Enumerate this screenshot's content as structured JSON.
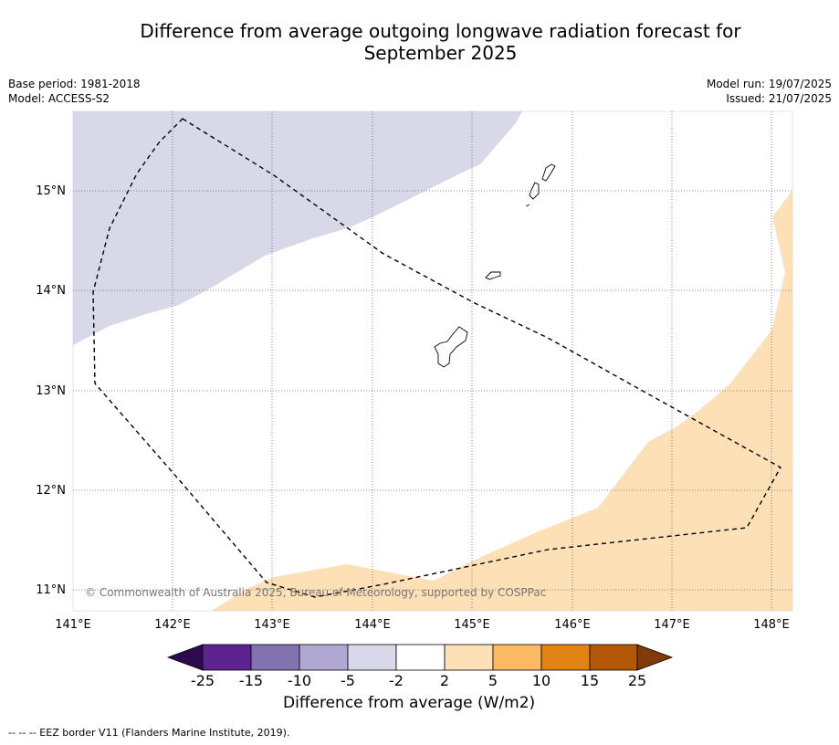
{
  "title_line1": "Difference from average outgoing longwave radiation forecast for",
  "title_line2": "September 2025",
  "meta": {
    "base_period": "Base period: 1981-2018",
    "model": "Model: ACCESS-S2",
    "model_run": "Model run: 19/07/2025",
    "issued": "Issued: 21/07/2025"
  },
  "map": {
    "lon_labels": [
      "141°E",
      "142°E",
      "143°E",
      "144°E",
      "145°E",
      "146°E",
      "147°E",
      "148°E"
    ],
    "lat_labels": [
      "15°N",
      "14°N",
      "13°N",
      "12°N",
      "11°N"
    ],
    "copyright": "© Commonwealth of Australia 2025, Bureau of Meteorology, supported by COSPPac",
    "colors": {
      "negative_shade": "#d8d8e8",
      "positive_shade": "#fde0b5"
    }
  },
  "colorbar": {
    "ticks": [
      "-25",
      "-15",
      "-10",
      "-5",
      "-2",
      "2",
      "5",
      "10",
      "15",
      "25"
    ],
    "colors": [
      "#2d0a4e",
      "#5e2390",
      "#8473b1",
      "#b0a8d3",
      "#d8d8ea",
      "#ffffff",
      "#fde0b5",
      "#fdb863",
      "#e08214",
      "#b35806",
      "#7f3b08"
    ],
    "label": "Difference from average (W/m2)"
  },
  "footnote": "--  --  -- EEZ border V11 (Flanders Marine Institute, 2019)."
}
